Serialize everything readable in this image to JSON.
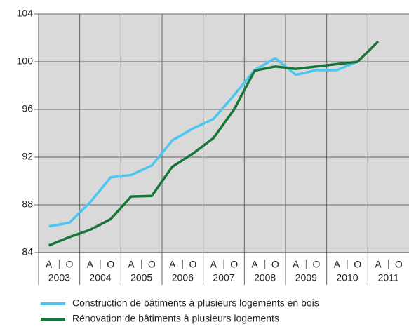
{
  "chart_data": {
    "type": "line",
    "categories": [
      "A",
      "O",
      "A",
      "O",
      "A",
      "O",
      "A",
      "O",
      "A",
      "O",
      "A",
      "O",
      "A",
      "O",
      "A",
      "O",
      "A",
      "O"
    ],
    "years": [
      "2003",
      "2004",
      "2005",
      "2006",
      "2007",
      "2008",
      "2009",
      "2010",
      "2011"
    ],
    "series": [
      {
        "name": "Construction de bâtiments à plusieurs logements en bois",
        "color": "#4cc6f0",
        "values": [
          86.2,
          86.5,
          88.2,
          90.3,
          90.5,
          91.3,
          93.4,
          94.4,
          95.2,
          97.2,
          99.3,
          100.3,
          98.9,
          99.3,
          99.3,
          100.0,
          null,
          null
        ]
      },
      {
        "name": "Rénovation de bâtiments à plusieurs logements",
        "color": "#17773a",
        "values": [
          84.6,
          85.3,
          85.9,
          86.8,
          88.7,
          88.75,
          91.2,
          92.3,
          93.6,
          96.0,
          99.25,
          99.6,
          99.4,
          99.6,
          99.8,
          100.0,
          101.7,
          null
        ]
      }
    ],
    "ylim": [
      84,
      104
    ],
    "yticks": [
      84,
      88,
      92,
      96,
      100,
      104
    ],
    "grid": true
  }
}
